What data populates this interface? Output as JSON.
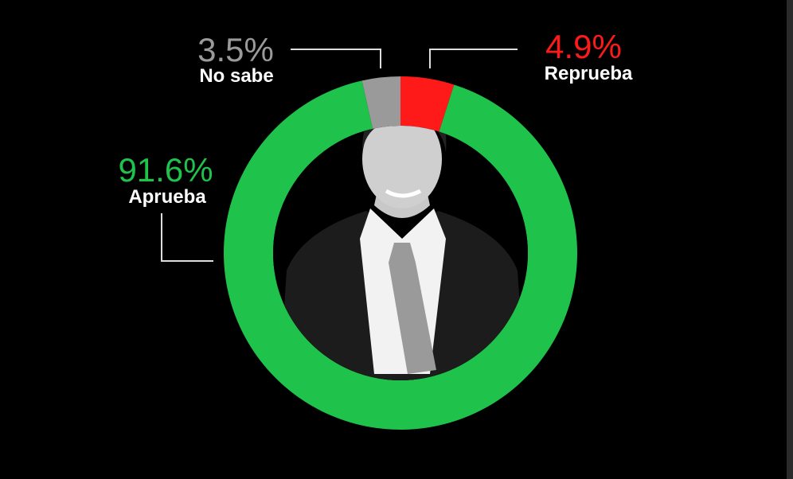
{
  "chart_data": {
    "type": "donut",
    "categories": [
      "Reprueba",
      "Aprueba",
      "No sabe"
    ],
    "values": [
      4.9,
      91.6,
      3.5
    ],
    "value_labels": [
      "4.9%",
      "91.6%",
      "3.5%"
    ],
    "colors": [
      "#ff1a1a",
      "#1fc24a",
      "#9a9a9a"
    ]
  }
}
